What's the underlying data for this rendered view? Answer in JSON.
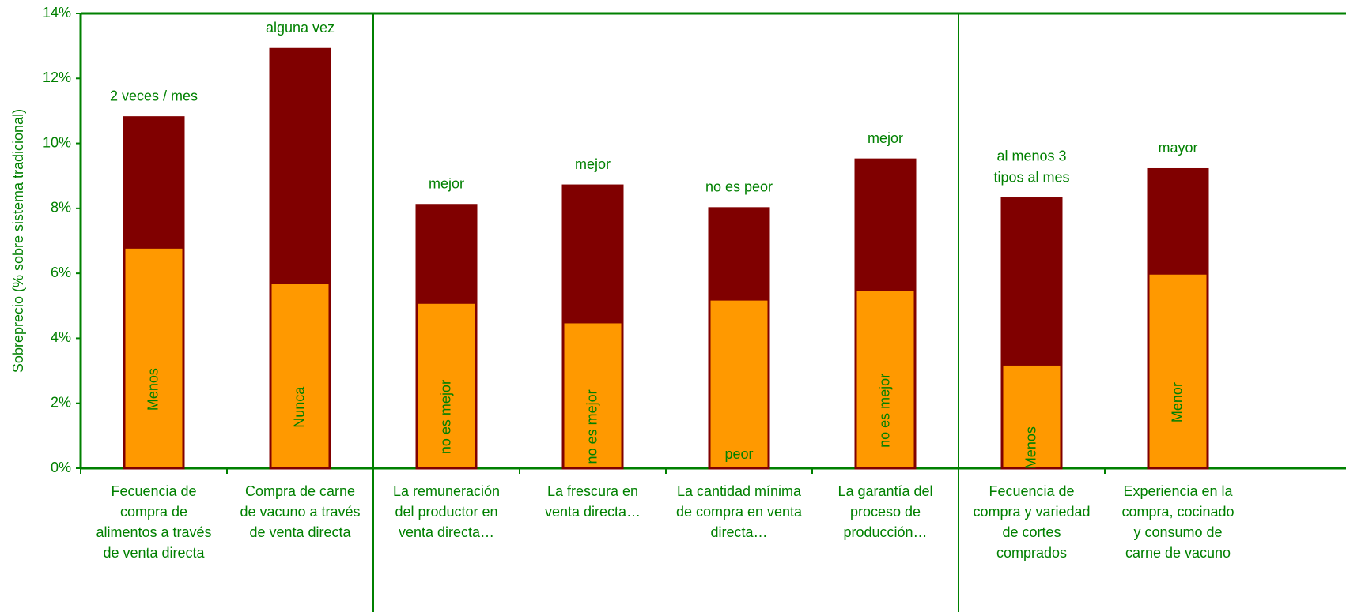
{
  "chart_data": {
    "type": "stacked_bar",
    "y_label": "Sobreprecio (% sobre sistema tradicional)",
    "categories": [
      [
        "Fecuencia de",
        "compra de",
        "alimentos a través",
        "de venta directa"
      ],
      [
        "Compra de carne",
        "de vacuno a través",
        "de venta directa"
      ],
      [
        "La remuneración",
        "del productor en",
        "venta directa…"
      ],
      [
        "La frescura en",
        "venta directa…"
      ],
      [
        "La cantidad mínima",
        "de compra en venta",
        "directa…"
      ],
      [
        "La garantía del",
        "proceso de",
        "producción…"
      ],
      [
        "Fecuencia de",
        "compra y variedad",
        "de cortes",
        "comprados"
      ],
      [
        "Experiencia en la",
        "compra, cocinado",
        "y consumo de",
        "carne de vacuno"
      ]
    ],
    "series": [
      {
        "color": "#ff9900",
        "values": [
          6.8,
          5.7,
          5.1,
          4.5,
          5.2,
          5.5,
          3.2,
          6.0
        ],
        "segment_labels": [
          "Menos",
          "Nunca",
          "no es mejor",
          "no es mejor",
          "peor",
          "no es mejor",
          "Menos",
          "Menor"
        ],
        "label_orientation": [
          "vertical",
          "vertical",
          "vertical",
          "vertical",
          "horizontal",
          "vertical",
          "vertical",
          "vertical"
        ]
      },
      {
        "color": "#800000",
        "values": [
          4.0,
          7.2,
          3.0,
          4.2,
          2.8,
          4.0,
          5.1,
          3.2
        ],
        "segment_labels": [
          [
            "2 veces / mes"
          ],
          [
            "alguna vez"
          ],
          [
            "mejor"
          ],
          [
            "mejor"
          ],
          [
            "no es peor"
          ],
          [
            "mejor"
          ],
          [
            "al menos 3",
            "tipos al mes"
          ],
          [
            "mayor"
          ]
        ]
      }
    ],
    "ylim": [
      0,
      14
    ],
    "yticks": [
      {
        "value": 0,
        "label": "0%"
      },
      {
        "value": 2,
        "label": "2%"
      },
      {
        "value": 4,
        "label": "4%"
      },
      {
        "value": 6,
        "label": "6%"
      },
      {
        "value": 8,
        "label": "8%"
      },
      {
        "value": 10,
        "label": "10%"
      },
      {
        "value": 12,
        "label": "12%"
      },
      {
        "value": 14,
        "label": "14%"
      }
    ],
    "group_breaks": [
      2,
      6
    ]
  }
}
